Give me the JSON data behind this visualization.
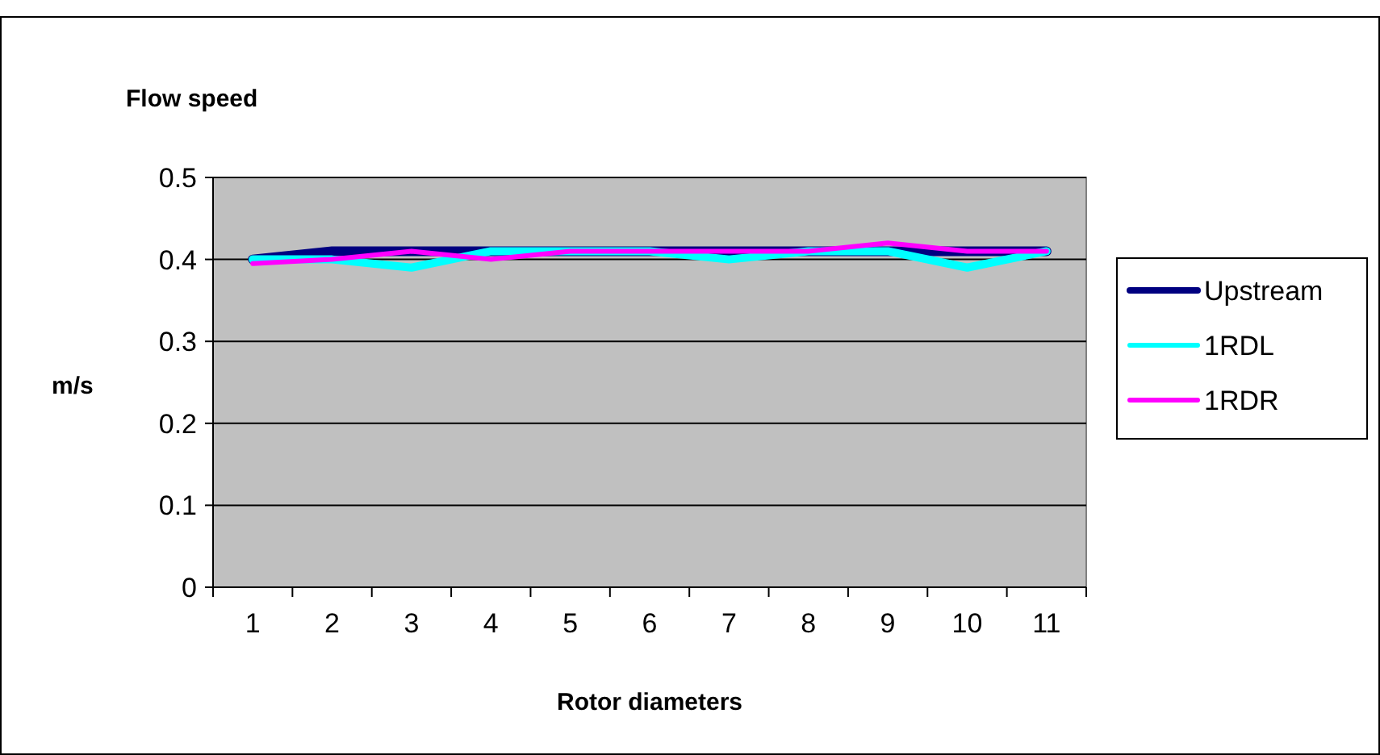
{
  "chart_data": {
    "type": "line",
    "title": "Flow speed",
    "xlabel": "Rotor diameters",
    "ylabel": "m/s",
    "categories": [
      "1",
      "2",
      "3",
      "4",
      "5",
      "6",
      "7",
      "8",
      "9",
      "10",
      "11"
    ],
    "series": [
      {
        "name": "Upstream",
        "color": "#000080",
        "values": [
          0.4,
          0.41,
          0.41,
          0.41,
          0.41,
          0.41,
          0.41,
          0.41,
          0.41,
          0.41,
          0.41
        ]
      },
      {
        "name": "1RDL",
        "color": "#00ffff",
        "values": [
          0.4,
          0.4,
          0.39,
          0.41,
          0.41,
          0.41,
          0.4,
          0.41,
          0.41,
          0.39,
          0.41
        ]
      },
      {
        "name": "1RDR",
        "color": "#ff00ff",
        "values": [
          0.395,
          0.4,
          0.41,
          0.4,
          0.41,
          0.41,
          0.41,
          0.41,
          0.42,
          0.41,
          0.41
        ]
      }
    ],
    "ylim": [
      0,
      0.5
    ],
    "yticks": [
      0,
      0.1,
      0.2,
      0.3,
      0.4,
      0.5
    ],
    "grid": "y",
    "legend": "right",
    "marker": "none",
    "line_style": "solid"
  }
}
